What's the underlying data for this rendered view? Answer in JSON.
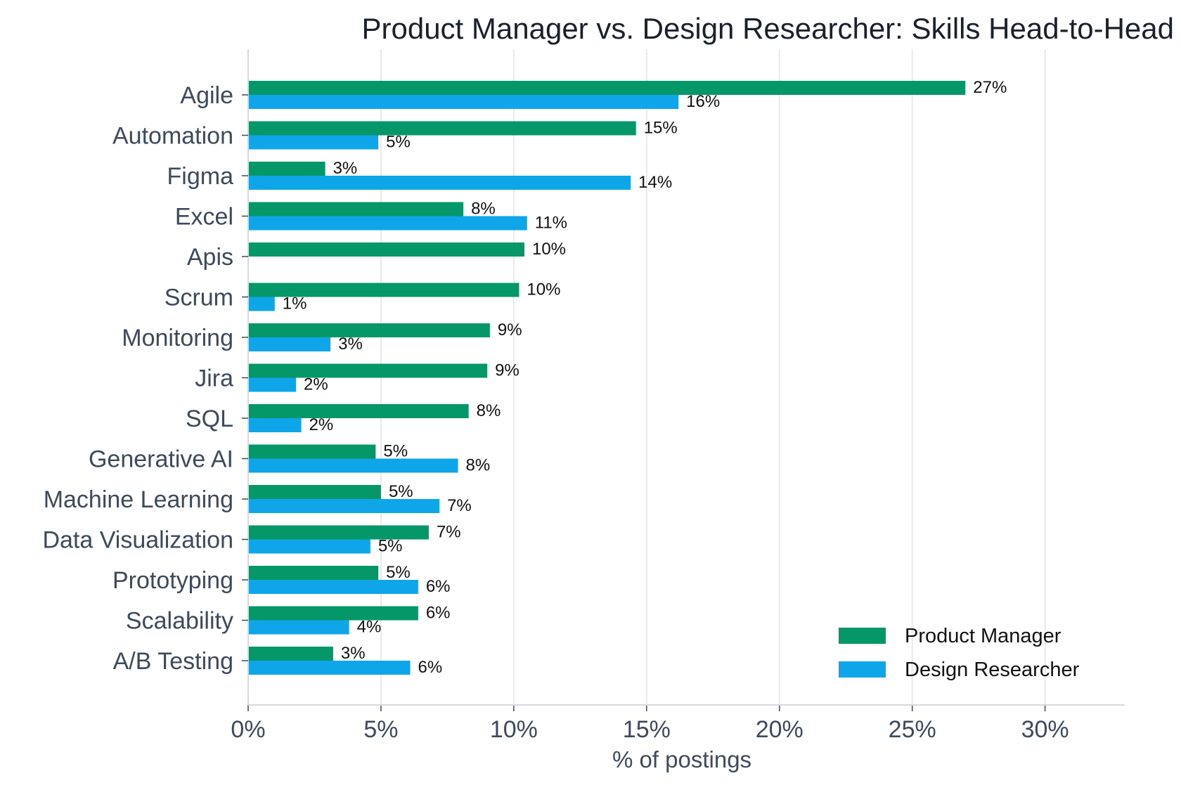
{
  "chart_data": {
    "type": "bar",
    "orientation": "horizontal",
    "title": "Product Manager vs. Design Researcher: Skills Head-to-Head",
    "xlabel": "% of postings",
    "ylabel": "",
    "xlim": [
      0,
      33
    ],
    "xticks": [
      0,
      5,
      10,
      15,
      20,
      25,
      30
    ],
    "xtick_labels": [
      "0%",
      "5%",
      "10%",
      "15%",
      "20%",
      "25%",
      "30%"
    ],
    "grid": "vertical",
    "legend_position": "bottom-right",
    "categories": [
      "Agile",
      "Automation",
      "Figma",
      "Excel",
      "Apis",
      "Scrum",
      "Monitoring",
      "Jira",
      "SQL",
      "Generative AI",
      "Machine Learning",
      "Data Visualization",
      "Prototyping",
      "Scalability",
      "A/B Testing"
    ],
    "series": [
      {
        "name": "Product Manager",
        "color": "#069769",
        "values": [
          27.0,
          14.6,
          2.9,
          8.1,
          10.4,
          10.2,
          9.1,
          9.0,
          8.3,
          4.8,
          5.0,
          6.8,
          4.9,
          6.4,
          3.2
        ],
        "labels": [
          "27%",
          "15%",
          "3%",
          "8%",
          "10%",
          "10%",
          "9%",
          "9%",
          "8%",
          "5%",
          "5%",
          "7%",
          "5%",
          "6%",
          "3%"
        ]
      },
      {
        "name": "Design Researcher",
        "color": "#0ea5e9",
        "values": [
          16.2,
          4.9,
          14.4,
          10.5,
          null,
          1.0,
          3.1,
          1.8,
          2.0,
          7.9,
          7.2,
          4.6,
          6.4,
          3.8,
          6.1
        ],
        "labels": [
          "16%",
          "5%",
          "14%",
          "11%",
          "",
          "1%",
          "3%",
          "2%",
          "2%",
          "8%",
          "7%",
          "5%",
          "6%",
          "4%",
          "6%"
        ]
      }
    ]
  }
}
